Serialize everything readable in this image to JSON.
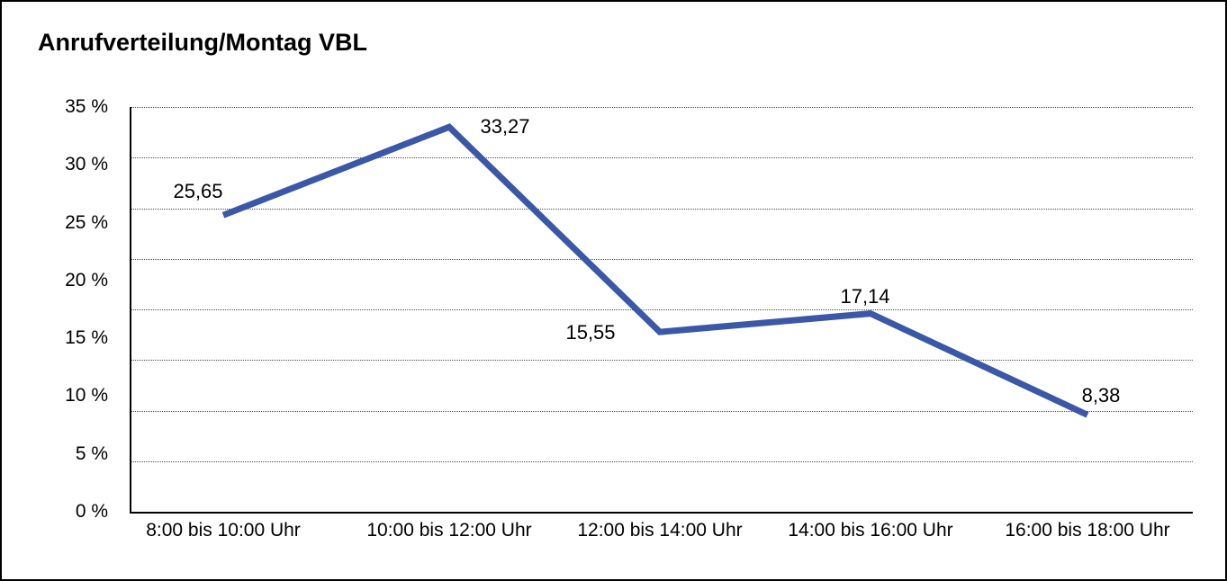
{
  "title": "Anrufverteilung/Montag VBL",
  "chart_data": {
    "type": "line",
    "title": "Anrufverteilung/Montag VBL",
    "categories": [
      "8:00 bis 10:00 Uhr",
      "10:00 bis 12:00 Uhr",
      "12:00 bis 14:00 Uhr",
      "14:00 bis 16:00 Uhr",
      "16:00 bis 18:00 Uhr"
    ],
    "values": [
      25.65,
      33.27,
      15.55,
      17.14,
      8.38
    ],
    "value_labels": [
      "25,65",
      "33,27",
      "15,55",
      "17,14",
      "8,38"
    ],
    "y_ticks": [
      "35 %",
      "30 %",
      "25 %",
      "20 %",
      "15 %",
      "10 %",
      "5 %",
      "0 %"
    ],
    "ylim": [
      0,
      35
    ],
    "xlabel": "",
    "ylabel": "",
    "grid": "horizontal-dotted",
    "legend": "none",
    "series_name": "Anrufverteilung Montag VBL",
    "line_color": "#3A57A8",
    "axis_color": "#000000",
    "text_color": "#000000"
  }
}
